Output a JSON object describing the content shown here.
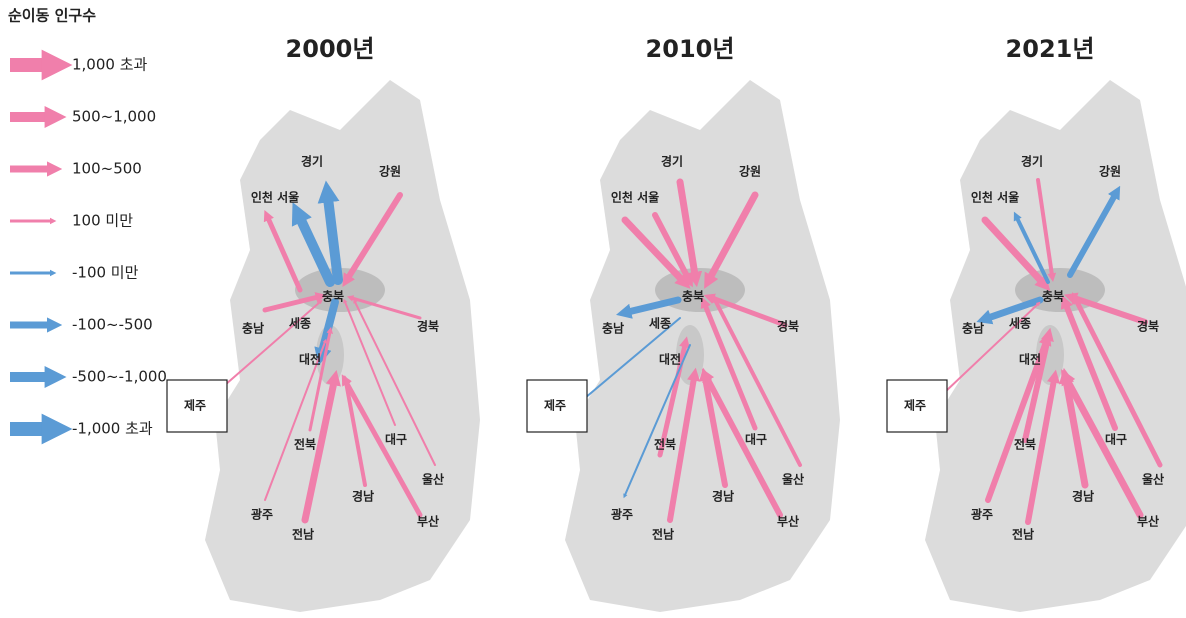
{
  "legend": {
    "title": "순이동 인구수",
    "items": [
      "1,000 초과",
      "500~1,000",
      "100~500",
      "100 미만",
      "-100 미만",
      "-100~-500",
      "-500~-1,000",
      "-1,000 초과"
    ]
  },
  "maps": [
    {
      "title": "2000년",
      "regions": [
        "경기",
        "강원",
        "인천 서울",
        "충북",
        "충남",
        "세종",
        "경북",
        "대전",
        "제주",
        "전북",
        "대구",
        "울산",
        "광주",
        "경남",
        "전남",
        "부산"
      ]
    },
    {
      "title": "2010년",
      "regions": [
        "경기",
        "강원",
        "인천 서울",
        "충북",
        "충남",
        "세종",
        "경북",
        "대전",
        "제주",
        "전북",
        "대구",
        "울산",
        "광주",
        "경남",
        "전남",
        "부산"
      ]
    },
    {
      "title": "2021년",
      "regions": [
        "경기",
        "강원",
        "인천 서울",
        "충북",
        "충남",
        "세종",
        "경북",
        "대전",
        "제주",
        "전북",
        "대구",
        "울산",
        "광주",
        "경남",
        "전남",
        "부산"
      ]
    }
  ]
}
